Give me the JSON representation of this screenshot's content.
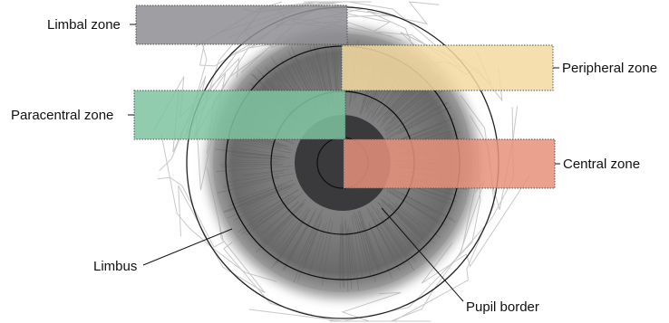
{
  "labels": {
    "limbal_zone": "Limbal zone",
    "peripheral_zone": "Peripheral zone",
    "paracentral_zone": "Paracentral zone",
    "central_zone": "Central zone",
    "limbus": "Limbus",
    "pupil_border": "Pupil border"
  },
  "colors": {
    "limbal_zone": "#8e8e93",
    "peripheral_zone": "#f3d9a0",
    "paracentral_zone": "#7fc3a0",
    "central_zone": "#e6907a",
    "iris": "#7a7a7a",
    "pupil": "#3a3a3c"
  }
}
